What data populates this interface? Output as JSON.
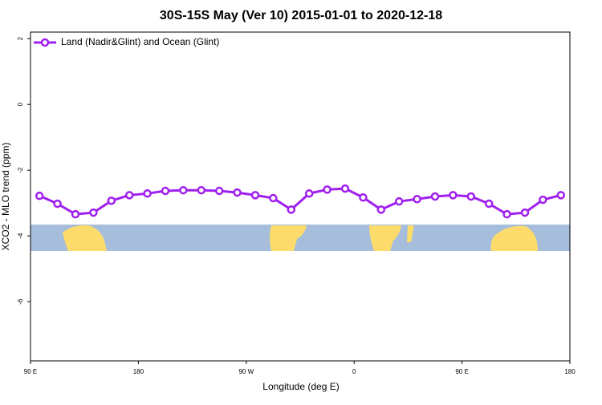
{
  "chart_data": {
    "type": "line",
    "title": "30S-15S May (Ver 10)   2015-01-01 to 2020-12-18",
    "x_label": "Longitude (deg E)",
    "y_label": "XCO2 - MLO trend (ppm)",
    "x": [
      97.5,
      112.5,
      127.5,
      142.5,
      157.5,
      172.5,
      187.5,
      202.5,
      217.5,
      232.5,
      247.5,
      262.5,
      277.5,
      292.5,
      307.5,
      322.5,
      337.5,
      352.5,
      367.5,
      382.5,
      397.5,
      412.5,
      427.5,
      442.5,
      457.5,
      472.5,
      487.5,
      502.5,
      517.5,
      532.5
    ],
    "series": [
      {
        "name": "Land (Nadir&Glint) and Ocean (Glint)",
        "color": "#a020f0",
        "values": [
          -2.78,
          -3.02,
          -3.34,
          -3.29,
          -2.93,
          -2.76,
          -2.71,
          -2.63,
          -2.61,
          -2.61,
          -2.63,
          -2.68,
          -2.76,
          -2.85,
          -3.2,
          -2.71,
          -2.59,
          -2.56,
          -2.83,
          -3.2,
          -2.95,
          -2.88,
          -2.8,
          -2.76,
          -2.8,
          -3.02,
          -3.34,
          -3.29,
          -2.9,
          -2.76
        ]
      }
    ],
    "xlim": [
      90,
      540
    ],
    "xticks": [
      {
        "value": 90,
        "label": "90 E"
      },
      180,
      {
        "value": 270,
        "label": "90 W"
      },
      {
        "value": 360,
        "label": "0"
      },
      {
        "value": 450,
        "label": "90 E"
      },
      {
        "value": 540,
        "label": "180"
      }
    ],
    "ylim": [
      -7.8,
      2.2
    ],
    "yticks": [
      -6,
      -4,
      -2,
      0,
      2
    ],
    "legend": "top-left"
  }
}
